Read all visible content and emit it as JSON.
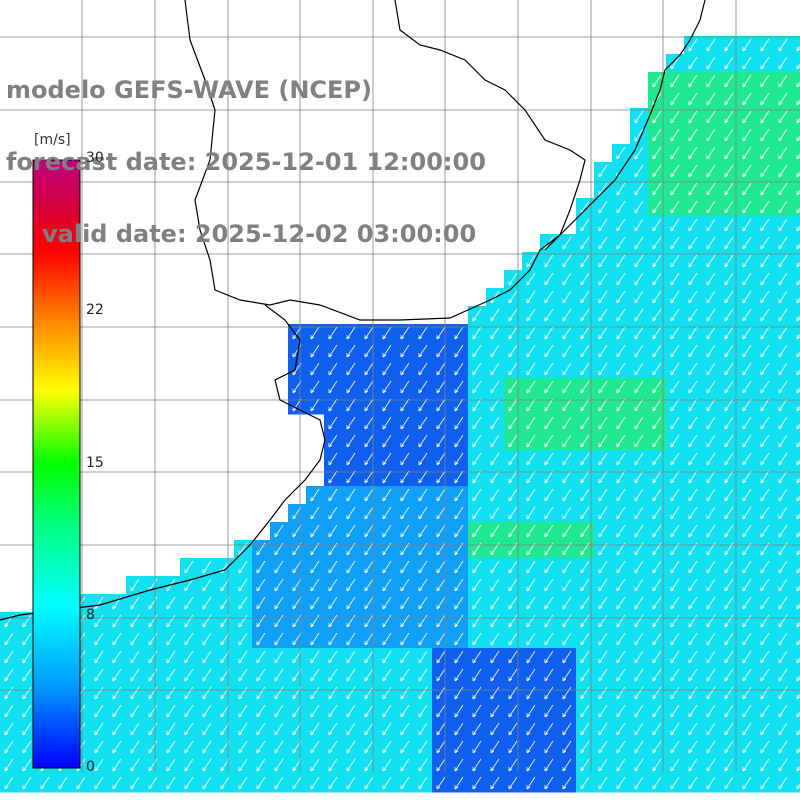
{
  "title": {
    "line1": "modelo GEFS-WAVE (NCEP)",
    "line2": "forecast date: 2025-12-01 12:00:00",
    "line3": "valid date: 2025-12-02 03:00:00"
  },
  "colorbar": {
    "unit": "[m/s]",
    "ticks": [
      "30",
      "22",
      "15",
      "8",
      "0"
    ],
    "min": 0,
    "max": 30,
    "colors": [
      "#0000ff",
      "#00a0ff",
      "#00ffff",
      "#00ff80",
      "#00ff00",
      "#ffff00",
      "#ff8000",
      "#ff0000",
      "#d00040",
      "#c00080"
    ]
  },
  "map": {
    "ocean_colors": {
      "blue": "#1060f0",
      "mid": "#10a0f8",
      "cyan": "#10e0f0",
      "green": "#20e890"
    },
    "land_color": "#ffffff",
    "grid_color": "#808080",
    "coastline_color": "#000000",
    "arrow_color": "#ffffff"
  }
}
